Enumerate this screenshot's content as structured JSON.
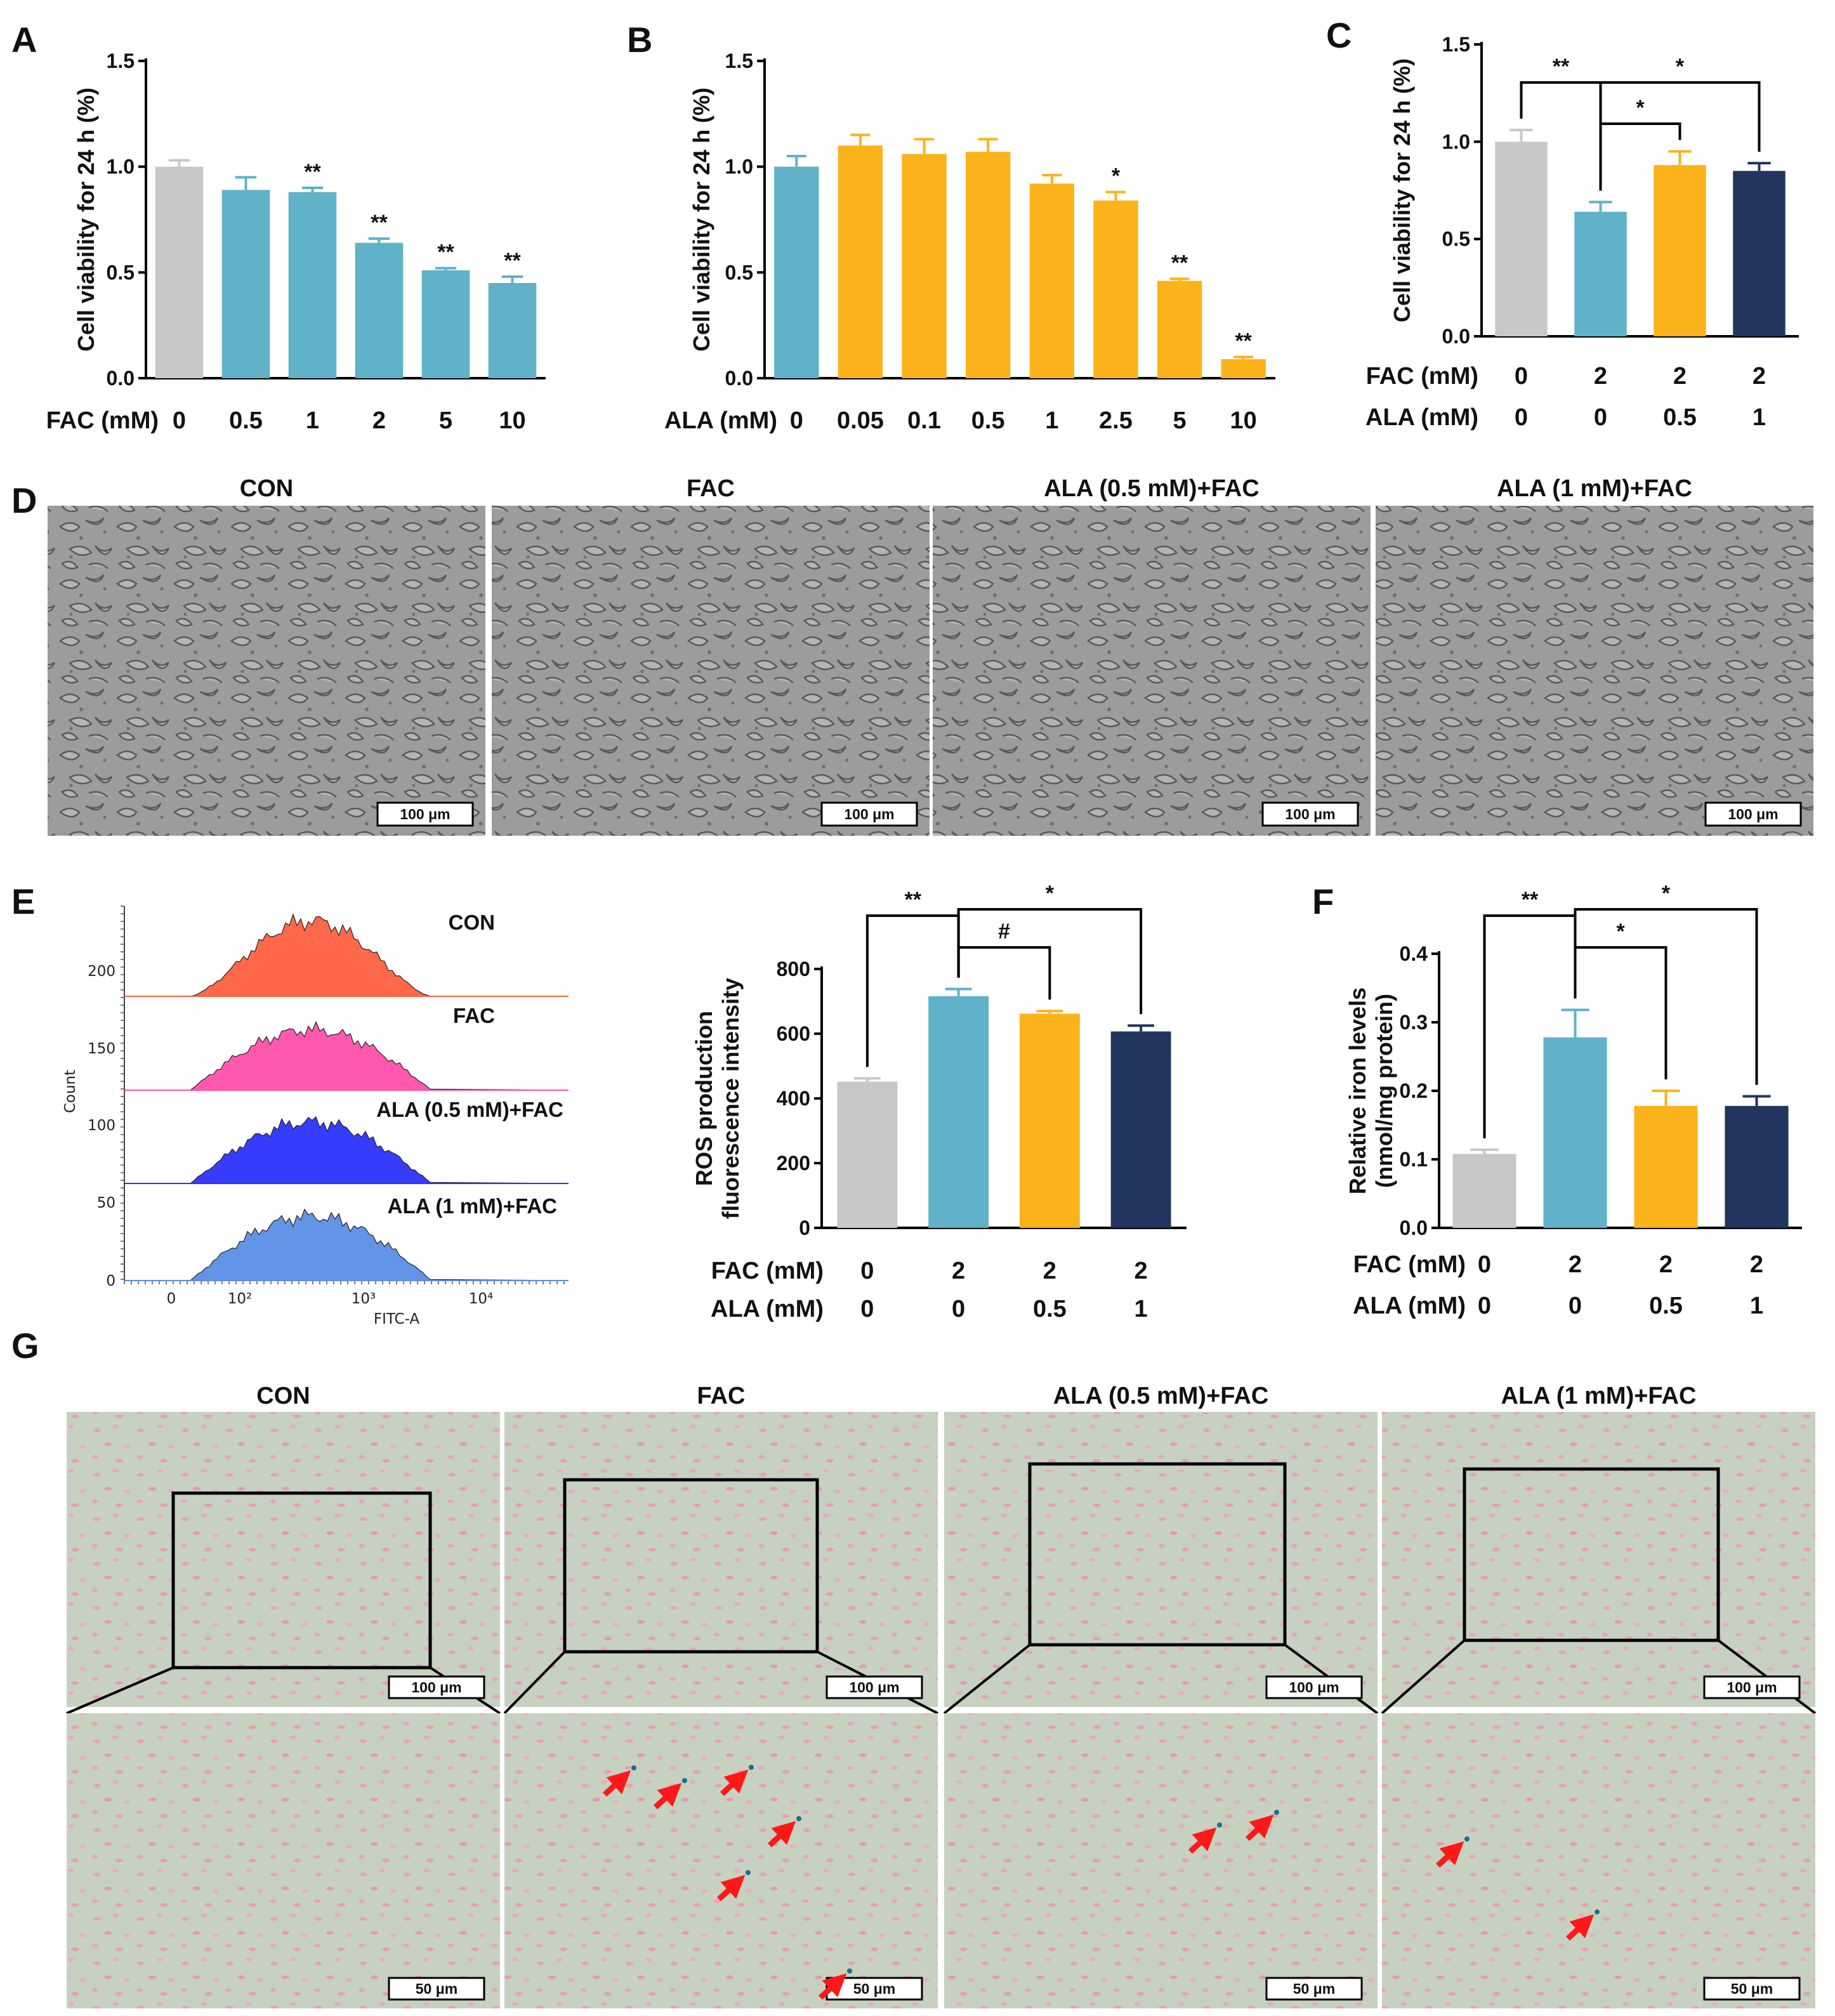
{
  "colors": {
    "gray": "#c8c8c8",
    "teal": "#5fb2c8",
    "orange": "#fbb31c",
    "navy": "#21355e",
    "red_orange": "#ff6040",
    "pink": "#ff4faa",
    "blue": "#2c33ff",
    "light_blue": "#5b8ee6",
    "micro_gray": "#9b9b9b",
    "stain_green": "#c4cfbd",
    "arrow_red": "#ff1818"
  },
  "panels": {
    "A": "A",
    "B": "B",
    "C": "C",
    "D": "D",
    "E": "E",
    "F": "F",
    "G": "G"
  },
  "microscopy_D": {
    "titles": [
      "CON",
      "FAC",
      "ALA (0.5 mM)+FAC",
      "ALA (1 mM)+FAC"
    ],
    "scale_bar": "100 μm"
  },
  "microscopy_G": {
    "titles": [
      "CON",
      "FAC",
      "ALA (0.5 mM)+FAC",
      "ALA (1 mM)+FAC"
    ],
    "scale_bar_top": "100 μm",
    "scale_bar_bottom": "50 μm"
  },
  "chart_data": [
    {
      "panel": "A",
      "type": "bar",
      "ylabel": "Cell viability for 24 h (%)",
      "ylim": [
        0,
        1.5
      ],
      "yticks": [
        "0.0",
        "0.5",
        "1.0",
        "1.5"
      ],
      "row_labels": [
        "FAC (mM)"
      ],
      "categories": [
        "0",
        "0.5",
        "1",
        "2",
        "5",
        "10"
      ],
      "values": [
        1.0,
        0.89,
        0.88,
        0.64,
        0.51,
        0.45
      ],
      "errors": [
        0.03,
        0.06,
        0.02,
        0.02,
        0.01,
        0.03
      ],
      "significance": [
        "",
        "",
        "**",
        "**",
        "**",
        "**"
      ],
      "bar_colors": [
        "gray",
        "teal",
        "teal",
        "teal",
        "teal",
        "teal"
      ]
    },
    {
      "panel": "B",
      "type": "bar",
      "ylabel": "Cell viability for 24 h (%)",
      "ylim": [
        0,
        1.5
      ],
      "yticks": [
        "0.0",
        "0.5",
        "1.0",
        "1.5"
      ],
      "row_labels": [
        "ALA (mM)"
      ],
      "categories": [
        "0",
        "0.05",
        "0.1",
        "0.5",
        "1",
        "2.5",
        "5",
        "10"
      ],
      "values": [
        1.0,
        1.1,
        1.06,
        1.07,
        0.92,
        0.84,
        0.46,
        0.09
      ],
      "errors": [
        0.05,
        0.05,
        0.07,
        0.06,
        0.04,
        0.04,
        0.01,
        0.01
      ],
      "significance": [
        "",
        "",
        "",
        "",
        "",
        "*",
        "**",
        "**"
      ],
      "bar_colors": [
        "teal",
        "orange",
        "orange",
        "orange",
        "orange",
        "orange",
        "orange",
        "orange"
      ]
    },
    {
      "panel": "C",
      "type": "bar",
      "ylabel": "Cell viability for 24 h (%)",
      "ylim": [
        0,
        1.5
      ],
      "yticks": [
        "0.0",
        "0.5",
        "1.0",
        "1.5"
      ],
      "row_labels": [
        "FAC (mM)",
        "ALA (mM)"
      ],
      "rows": [
        [
          "0",
          "2",
          "2",
          "2"
        ],
        [
          "0",
          "0",
          "0.5",
          "1"
        ]
      ],
      "values": [
        1.0,
        0.64,
        0.88,
        0.85
      ],
      "errors": [
        0.06,
        0.05,
        0.07,
        0.04
      ],
      "bar_colors": [
        "gray",
        "teal",
        "orange",
        "navy"
      ],
      "comparisons": [
        {
          "from": 0,
          "to": 1,
          "label": "**"
        },
        {
          "from": 1,
          "to": 2,
          "label": "*"
        },
        {
          "from": 1,
          "to": 3,
          "label": "*"
        }
      ]
    },
    {
      "panel": "E-histogram",
      "type": "area",
      "ylabel": "Count",
      "xlabel": "FITC-A",
      "yticks": [
        "0",
        "50",
        "100",
        "150",
        "200"
      ],
      "xticks": [
        "0",
        "10²",
        "10³",
        "10⁴"
      ],
      "series": [
        {
          "name": "CON",
          "color": "red_orange"
        },
        {
          "name": "FAC",
          "color": "pink"
        },
        {
          "name": "ALA (0.5 mM)+FAC",
          "color": "blue"
        },
        {
          "name": "ALA (1 mM)+FAC",
          "color": "light_blue"
        }
      ]
    },
    {
      "panel": "E",
      "type": "bar",
      "ylabel": "ROS production\nfluorescence intensity",
      "ylim": [
        0,
        800
      ],
      "yticks": [
        "0",
        "200",
        "400",
        "600",
        "800"
      ],
      "row_labels": [
        "FAC (mM)",
        "ALA (mM)"
      ],
      "rows": [
        [
          "0",
          "2",
          "2",
          "2"
        ],
        [
          "0",
          "0",
          "0.5",
          "1"
        ]
      ],
      "values": [
        452,
        716,
        662,
        607
      ],
      "errors": [
        10,
        22,
        8,
        18
      ],
      "bar_colors": [
        "gray",
        "teal",
        "orange",
        "navy"
      ],
      "comparisons": [
        {
          "from": 0,
          "to": 1,
          "label": "**"
        },
        {
          "from": 1,
          "to": 2,
          "label": "#"
        },
        {
          "from": 1,
          "to": 3,
          "label": "*"
        }
      ]
    },
    {
      "panel": "F",
      "type": "bar",
      "ylabel": "Relative iron levels\n(nmol/mg protein)",
      "ylim": [
        0,
        0.4
      ],
      "yticks": [
        "0.0",
        "0.1",
        "0.2",
        "0.3",
        "0.4"
      ],
      "row_labels": [
        "FAC (mM)",
        "ALA (mM)"
      ],
      "rows": [
        [
          "0",
          "2",
          "2",
          "2"
        ],
        [
          "0",
          "0",
          "0.5",
          "1"
        ]
      ],
      "values": [
        0.108,
        0.278,
        0.178,
        0.178
      ],
      "errors": [
        0.006,
        0.04,
        0.022,
        0.014
      ],
      "bar_colors": [
        "gray",
        "teal",
        "orange",
        "navy"
      ],
      "comparisons": [
        {
          "from": 0,
          "to": 1,
          "label": "**"
        },
        {
          "from": 1,
          "to": 2,
          "label": "*"
        },
        {
          "from": 1,
          "to": 3,
          "label": "*"
        }
      ]
    }
  ]
}
